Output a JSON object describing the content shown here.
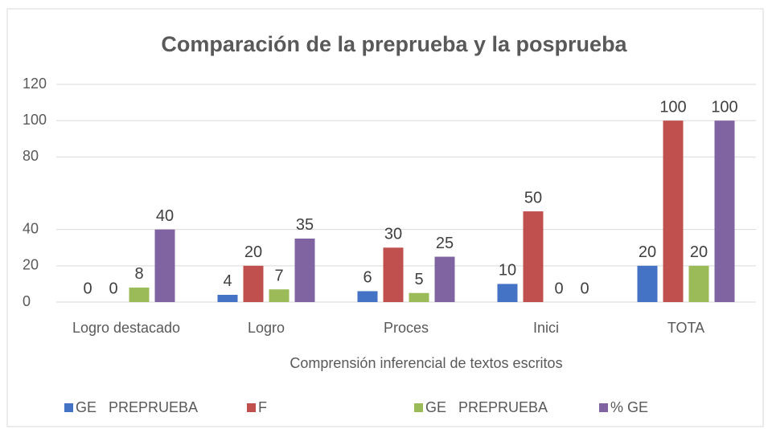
{
  "chart_data": {
    "type": "bar",
    "title": "Comparación de la preprueba y la posprueba",
    "categories": [
      "Logro destacado",
      "Logro",
      "Proces",
      "Inici",
      "TOTA"
    ],
    "x_label": "Comprensión inferencial de textos escritos",
    "series": [
      {
        "name": "GE   PREPRUEBA",
        "color": "#4472c4",
        "values": [
          0,
          4,
          6,
          10,
          20
        ]
      },
      {
        "name": "F",
        "color": "#c0504d",
        "values": [
          0,
          20,
          30,
          50,
          100
        ]
      },
      {
        "name": "GE   PREPRUEBA",
        "color": "#9bbb59",
        "values": [
          8,
          7,
          5,
          0,
          20
        ]
      },
      {
        "name": "% GE",
        "color": "#8064a2",
        "values": [
          40,
          35,
          25,
          0,
          100
        ]
      }
    ],
    "ylim": [
      0,
      120
    ],
    "yticks": [
      0,
      20,
      40,
      80,
      100,
      120
    ],
    "grid": true,
    "legend": "bottom"
  }
}
